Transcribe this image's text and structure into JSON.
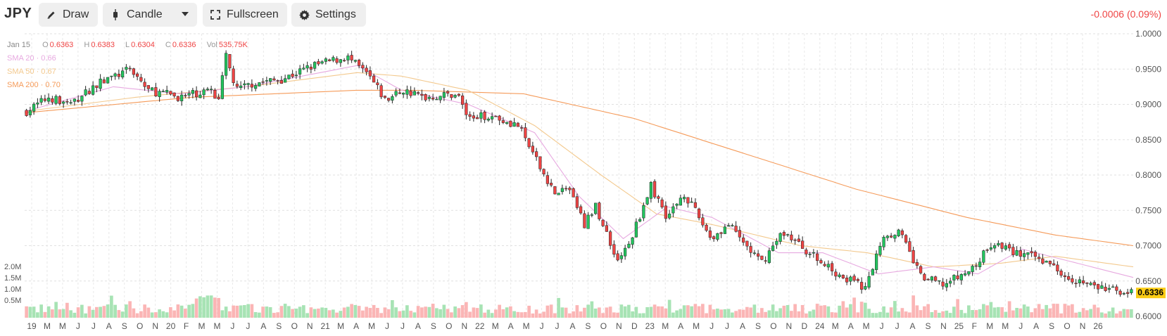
{
  "toolbar": {
    "symbol": "JPY",
    "draw_label": "Draw",
    "candle_label": "Candle",
    "fullscreen_label": "Fullscreen",
    "settings_label": "Settings",
    "change": "-0.0006 (0.09%)"
  },
  "legend": {
    "date": "Jan 15",
    "o_key": "O",
    "o_val": "0.6363",
    "h_key": "H",
    "h_val": "0.6383",
    "l_key": "L",
    "l_val": "0.6304",
    "c_key": "C",
    "c_val": "0.6336",
    "vol_key": "Vol",
    "vol_val": "535.75K",
    "sma20": "SMA 20 · 0.66",
    "sma50": "SMA 50 · 0.67",
    "sma200": "SMA 200 · 0.70"
  },
  "colors": {
    "up": "#22c55e",
    "down": "#ef4444",
    "sma20": "#e7a9e0",
    "sma50": "#f3c98e",
    "sma200": "#f59b5a",
    "last_price_bg": "#facc15"
  },
  "volume_labels": [
    "2.0M",
    "1.5M",
    "1.0M",
    "0.5M"
  ],
  "chart_data": {
    "type": "candlestick",
    "ylim": [
      0.6,
      1.0
    ],
    "y_ticks": [
      "1.0000",
      "0.9500",
      "0.9000",
      "0.8500",
      "0.8000",
      "0.7500",
      "0.7000",
      "0.6500",
      "0.6000"
    ],
    "x_ticks": [
      "19",
      "M",
      "M",
      "J",
      "J",
      "A",
      "S",
      "O",
      "N",
      "20",
      "F",
      "M",
      "M",
      "J",
      "J",
      "A",
      "S",
      "O",
      "N",
      "21",
      "M",
      "A",
      "M",
      "J",
      "J",
      "A",
      "S",
      "O",
      "N",
      "22",
      "M",
      "A",
      "M",
      "J",
      "J",
      "A",
      "S",
      "O",
      "N",
      "D",
      "23",
      "M",
      "A",
      "M",
      "J",
      "J",
      "A",
      "S",
      "O",
      "N",
      "D",
      "24",
      "M",
      "A",
      "M",
      "J",
      "J",
      "A",
      "S",
      "N",
      "25",
      "F",
      "M",
      "M",
      "J",
      "A",
      "S",
      "O",
      "N",
      "26"
    ],
    "last_price": "0.6336",
    "close_path": [
      {
        "t": 0.0,
        "v": 0.89
      },
      {
        "t": 0.02,
        "v": 0.91
      },
      {
        "t": 0.04,
        "v": 0.9
      },
      {
        "t": 0.065,
        "v": 0.93
      },
      {
        "t": 0.095,
        "v": 0.95
      },
      {
        "t": 0.11,
        "v": 0.92
      },
      {
        "t": 0.14,
        "v": 0.91
      },
      {
        "t": 0.165,
        "v": 0.92
      },
      {
        "t": 0.175,
        "v": 0.91
      },
      {
        "t": 0.18,
        "v": 0.97
      },
      {
        "t": 0.19,
        "v": 0.92
      },
      {
        "t": 0.205,
        "v": 0.93
      },
      {
        "t": 0.23,
        "v": 0.935
      },
      {
        "t": 0.26,
        "v": 0.955
      },
      {
        "t": 0.29,
        "v": 0.967
      },
      {
        "t": 0.31,
        "v": 0.94
      },
      {
        "t": 0.325,
        "v": 0.905
      },
      {
        "t": 0.34,
        "v": 0.92
      },
      {
        "t": 0.36,
        "v": 0.91
      },
      {
        "t": 0.39,
        "v": 0.915
      },
      {
        "t": 0.4,
        "v": 0.88
      },
      {
        "t": 0.42,
        "v": 0.885
      },
      {
        "t": 0.445,
        "v": 0.87
      },
      {
        "t": 0.465,
        "v": 0.81
      },
      {
        "t": 0.48,
        "v": 0.77
      },
      {
        "t": 0.49,
        "v": 0.785
      },
      {
        "t": 0.505,
        "v": 0.73
      },
      {
        "t": 0.515,
        "v": 0.755
      },
      {
        "t": 0.535,
        "v": 0.68
      },
      {
        "t": 0.545,
        "v": 0.7
      },
      {
        "t": 0.565,
        "v": 0.785
      },
      {
        "t": 0.58,
        "v": 0.74
      },
      {
        "t": 0.595,
        "v": 0.775
      },
      {
        "t": 0.62,
        "v": 0.71
      },
      {
        "t": 0.635,
        "v": 0.73
      },
      {
        "t": 0.665,
        "v": 0.675
      },
      {
        "t": 0.685,
        "v": 0.72
      },
      {
        "t": 0.72,
        "v": 0.675
      },
      {
        "t": 0.74,
        "v": 0.655
      },
      {
        "t": 0.76,
        "v": 0.64
      },
      {
        "t": 0.775,
        "v": 0.715
      },
      {
        "t": 0.79,
        "v": 0.72
      },
      {
        "t": 0.81,
        "v": 0.655
      },
      {
        "t": 0.83,
        "v": 0.645
      },
      {
        "t": 0.855,
        "v": 0.665
      },
      {
        "t": 0.875,
        "v": 0.705
      },
      {
        "t": 0.895,
        "v": 0.69
      },
      {
        "t": 0.92,
        "v": 0.68
      },
      {
        "t": 0.945,
        "v": 0.655
      },
      {
        "t": 0.97,
        "v": 0.64
      },
      {
        "t": 1.0,
        "v": 0.634
      }
    ],
    "sma20_path": [
      {
        "t": 0.0,
        "v": 0.89
      },
      {
        "t": 0.08,
        "v": 0.925
      },
      {
        "t": 0.14,
        "v": 0.915
      },
      {
        "t": 0.2,
        "v": 0.925
      },
      {
        "t": 0.3,
        "v": 0.955
      },
      {
        "t": 0.34,
        "v": 0.92
      },
      {
        "t": 0.4,
        "v": 0.9
      },
      {
        "t": 0.46,
        "v": 0.86
      },
      {
        "t": 0.5,
        "v": 0.77
      },
      {
        "t": 0.54,
        "v": 0.71
      },
      {
        "t": 0.58,
        "v": 0.755
      },
      {
        "t": 0.62,
        "v": 0.74
      },
      {
        "t": 0.68,
        "v": 0.69
      },
      {
        "t": 0.72,
        "v": 0.69
      },
      {
        "t": 0.77,
        "v": 0.66
      },
      {
        "t": 0.82,
        "v": 0.67
      },
      {
        "t": 0.86,
        "v": 0.66
      },
      {
        "t": 0.9,
        "v": 0.695
      },
      {
        "t": 0.95,
        "v": 0.675
      },
      {
        "t": 1.0,
        "v": 0.655
      }
    ],
    "sma50_path": [
      {
        "t": 0.0,
        "v": 0.89
      },
      {
        "t": 0.1,
        "v": 0.91
      },
      {
        "t": 0.2,
        "v": 0.925
      },
      {
        "t": 0.3,
        "v": 0.945
      },
      {
        "t": 0.34,
        "v": 0.94
      },
      {
        "t": 0.4,
        "v": 0.92
      },
      {
        "t": 0.46,
        "v": 0.87
      },
      {
        "t": 0.52,
        "v": 0.8
      },
      {
        "t": 0.57,
        "v": 0.745
      },
      {
        "t": 0.62,
        "v": 0.73
      },
      {
        "t": 0.7,
        "v": 0.7
      },
      {
        "t": 0.76,
        "v": 0.69
      },
      {
        "t": 0.82,
        "v": 0.67
      },
      {
        "t": 0.88,
        "v": 0.675
      },
      {
        "t": 0.93,
        "v": 0.685
      },
      {
        "t": 1.0,
        "v": 0.67
      }
    ],
    "sma200_path": [
      {
        "t": 0.0,
        "v": 0.888
      },
      {
        "t": 0.15,
        "v": 0.91
      },
      {
        "t": 0.3,
        "v": 0.92
      },
      {
        "t": 0.35,
        "v": 0.92
      },
      {
        "t": 0.45,
        "v": 0.915
      },
      {
        "t": 0.55,
        "v": 0.88
      },
      {
        "t": 0.65,
        "v": 0.83
      },
      {
        "t": 0.75,
        "v": 0.78
      },
      {
        "t": 0.85,
        "v": 0.74
      },
      {
        "t": 0.93,
        "v": 0.715
      },
      {
        "t": 1.0,
        "v": 0.7
      }
    ]
  }
}
